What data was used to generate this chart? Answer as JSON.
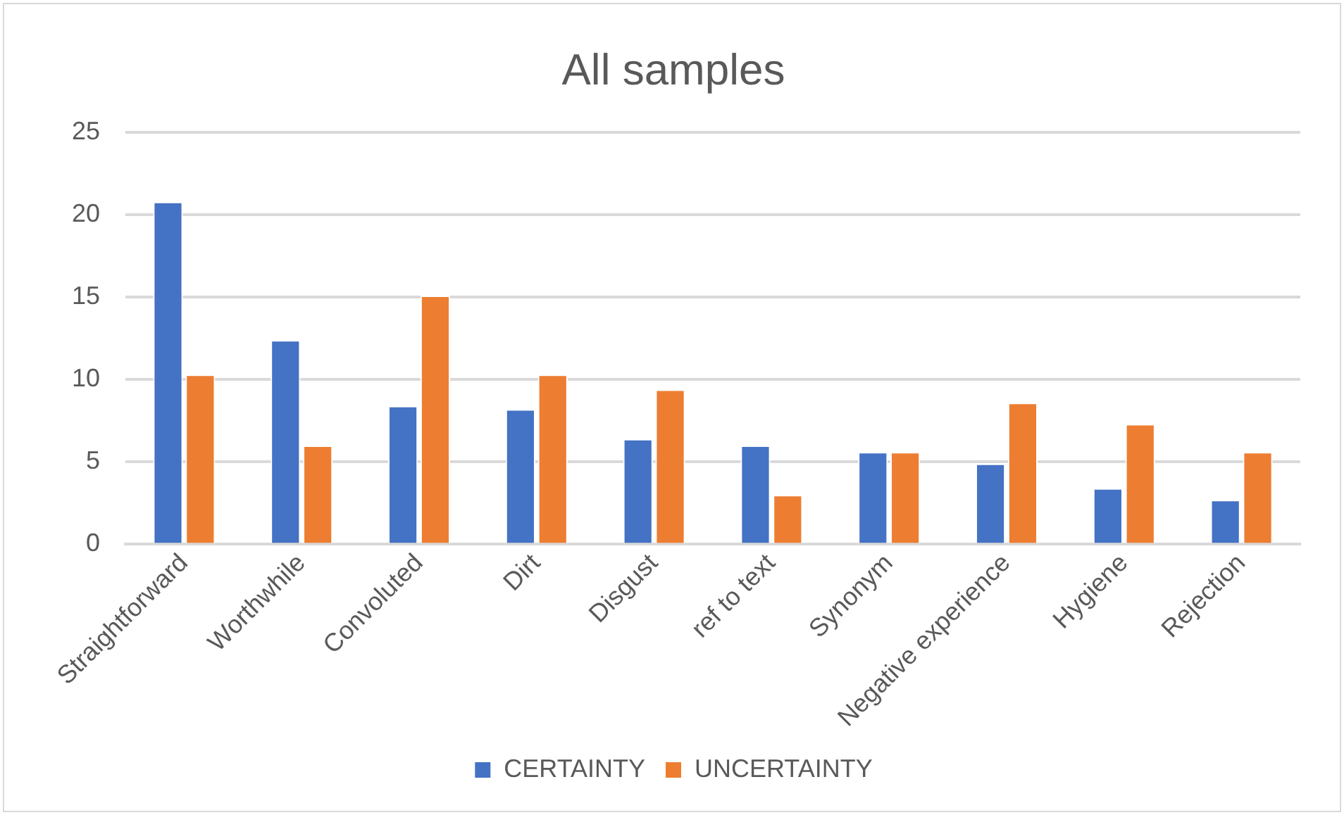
{
  "chart_data": {
    "type": "bar",
    "title": "All samples",
    "categories": [
      "Straightforward",
      "Worthwhile",
      "Convoluted",
      "Dirt",
      "Disgust",
      "ref to text",
      "Synonym",
      "Negative experience",
      "Hygiene",
      "Rejection"
    ],
    "series": [
      {
        "name": "CERTAINTY",
        "color": "#4472c4",
        "values": [
          20.8,
          12.4,
          8.4,
          8.2,
          6.4,
          6.0,
          5.6,
          4.9,
          3.4,
          2.7
        ]
      },
      {
        "name": "UNCERTAINTY",
        "color": "#ed7d31",
        "values": [
          10.3,
          6.0,
          15.1,
          10.3,
          9.4,
          3.0,
          5.6,
          8.6,
          7.3,
          5.6
        ]
      }
    ],
    "ylim": [
      0,
      25
    ],
    "yticks": [
      0,
      5,
      10,
      15,
      20,
      25
    ],
    "grid": "y",
    "legend": "bottom"
  }
}
